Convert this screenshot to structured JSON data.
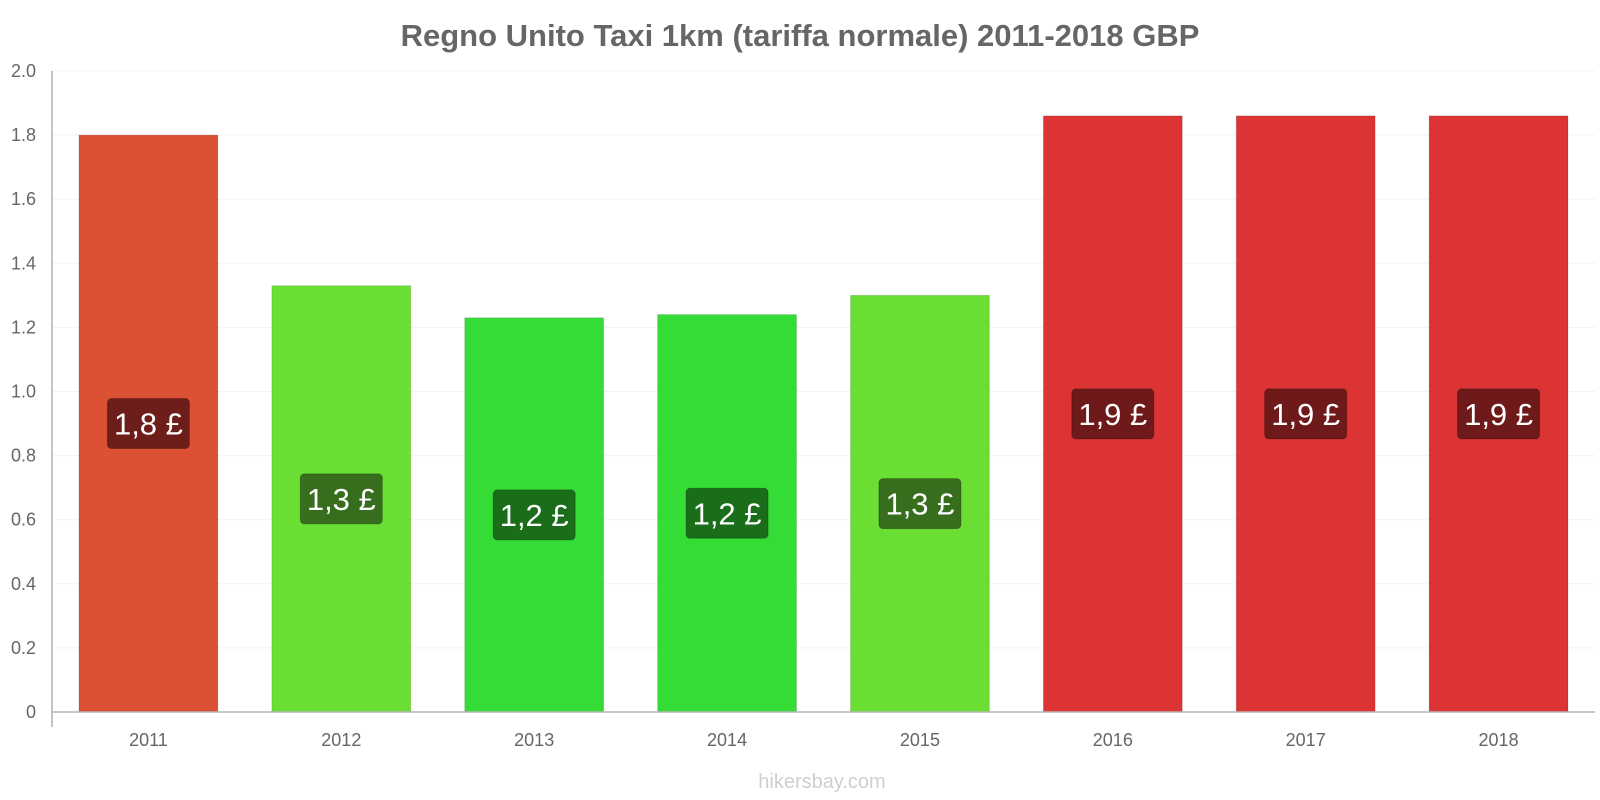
{
  "chart_data": {
    "type": "bar",
    "title": "Regno Unito Taxi 1km (tariffa normale) 2011-2018 GBP",
    "xlabel": "",
    "ylabel": "",
    "ylim": [
      0,
      2.0
    ],
    "yticks": [
      "0",
      "0.2",
      "0.4",
      "0.6",
      "0.8",
      "1.0",
      "1.2",
      "1.4",
      "1.6",
      "1.8",
      "2.0"
    ],
    "categories": [
      "2011",
      "2012",
      "2013",
      "2014",
      "2015",
      "2016",
      "2017",
      "2018"
    ],
    "values": [
      1.8,
      1.33,
      1.23,
      1.24,
      1.3,
      1.86,
      1.86,
      1.86
    ],
    "labels": [
      "1,8 £",
      "1,3 £",
      "1,2 £",
      "1,2 £",
      "1,3 £",
      "1,9 £",
      "1,9 £",
      "1,9 £"
    ],
    "bar_colors": [
      "#dc5034",
      "#6bde34",
      "#36dc36",
      "#36dc36",
      "#6bde34",
      "#dc3434",
      "#dc3434",
      "#dc3434"
    ],
    "label_colors": [
      "#6e1e1a",
      "#376e1e",
      "#1a6e1a",
      "#1a6e1a",
      "#376e1e",
      "#6e1a1a",
      "#6e1a1a",
      "#6e1a1a"
    ],
    "grid": true,
    "legend": "none"
  },
  "footer": {
    "source": "hikersbay.com"
  }
}
